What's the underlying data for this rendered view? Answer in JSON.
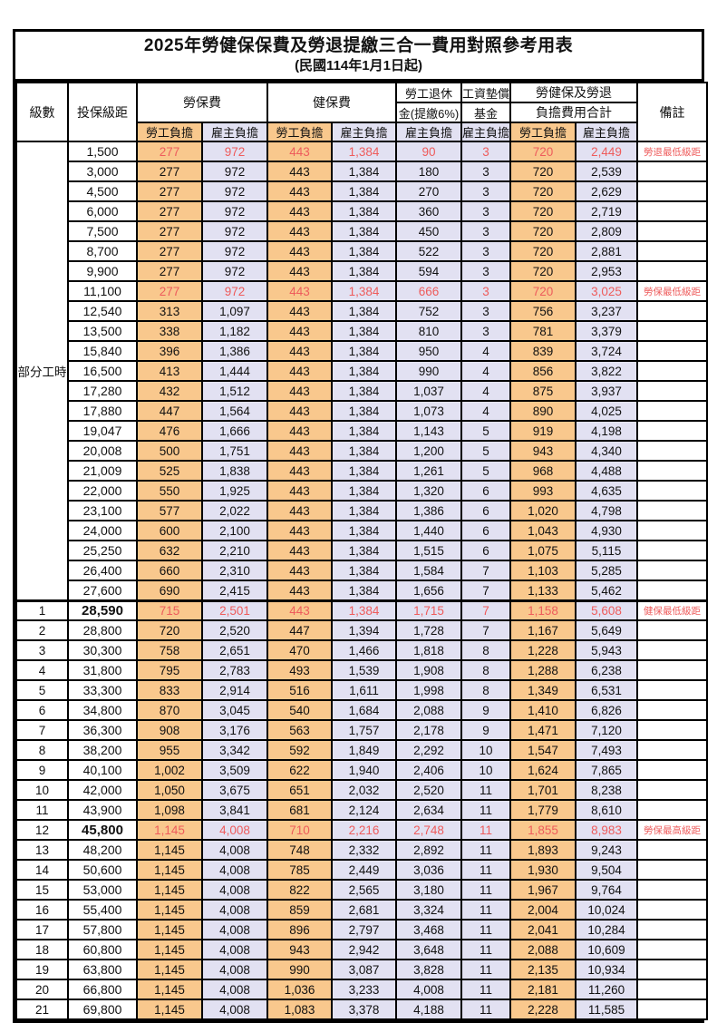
{
  "page": {
    "title": "2025年勞健保保費及勞退提繳三合一費用對照參考用表",
    "subtitle": "(民國114年1月1日起)"
  },
  "header": {
    "level": "級數",
    "bracket": "投保級距",
    "labor_fee": "勞保費",
    "health_fee": "健保費",
    "pension_top": "勞工退休",
    "pension_bottom": "金(提繳6%)",
    "wage_fund_top": "工資墊償",
    "wage_fund_bottom": "基金",
    "total_top": "勞健保及勞退",
    "total_bottom": "負擔費用合計",
    "remark": "備註",
    "employee_share": "勞工負擔",
    "employer_share": "雇主負擔"
  },
  "part_time_label": "部分工時",
  "part_time_rowspan": 23,
  "colors": {
    "employee_fill": "#F9C88D",
    "employer_fill": "#E2E1F2",
    "highlight_text": "#EE5C5C",
    "border": "#000000"
  },
  "rows": [
    {
      "bracket": "1,500",
      "values": [
        "277",
        "972",
        "443",
        "1,384",
        "90",
        "3",
        "720",
        "2,449"
      ],
      "remark": "勞退最低級距",
      "red": true
    },
    {
      "bracket": "3,000",
      "values": [
        "277",
        "972",
        "443",
        "1,384",
        "180",
        "3",
        "720",
        "2,539"
      ]
    },
    {
      "bracket": "4,500",
      "values": [
        "277",
        "972",
        "443",
        "1,384",
        "270",
        "3",
        "720",
        "2,629"
      ]
    },
    {
      "bracket": "6,000",
      "values": [
        "277",
        "972",
        "443",
        "1,384",
        "360",
        "3",
        "720",
        "2,719"
      ]
    },
    {
      "bracket": "7,500",
      "values": [
        "277",
        "972",
        "443",
        "1,384",
        "450",
        "3",
        "720",
        "2,809"
      ]
    },
    {
      "bracket": "8,700",
      "values": [
        "277",
        "972",
        "443",
        "1,384",
        "522",
        "3",
        "720",
        "2,881"
      ]
    },
    {
      "bracket": "9,900",
      "values": [
        "277",
        "972",
        "443",
        "1,384",
        "594",
        "3",
        "720",
        "2,953"
      ]
    },
    {
      "bracket": "11,100",
      "values": [
        "277",
        "972",
        "443",
        "1,384",
        "666",
        "3",
        "720",
        "3,025"
      ],
      "remark": "勞保最低級距",
      "red": true
    },
    {
      "bracket": "12,540",
      "values": [
        "313",
        "1,097",
        "443",
        "1,384",
        "752",
        "3",
        "756",
        "3,237"
      ]
    },
    {
      "bracket": "13,500",
      "values": [
        "338",
        "1,182",
        "443",
        "1,384",
        "810",
        "3",
        "781",
        "3,379"
      ]
    },
    {
      "bracket": "15,840",
      "values": [
        "396",
        "1,386",
        "443",
        "1,384",
        "950",
        "4",
        "839",
        "3,724"
      ]
    },
    {
      "bracket": "16,500",
      "values": [
        "413",
        "1,444",
        "443",
        "1,384",
        "990",
        "4",
        "856",
        "3,822"
      ]
    },
    {
      "bracket": "17,280",
      "values": [
        "432",
        "1,512",
        "443",
        "1,384",
        "1,037",
        "4",
        "875",
        "3,937"
      ]
    },
    {
      "bracket": "17,880",
      "values": [
        "447",
        "1,564",
        "443",
        "1,384",
        "1,073",
        "4",
        "890",
        "4,025"
      ]
    },
    {
      "bracket": "19,047",
      "values": [
        "476",
        "1,666",
        "443",
        "1,384",
        "1,143",
        "5",
        "919",
        "4,198"
      ]
    },
    {
      "bracket": "20,008",
      "values": [
        "500",
        "1,751",
        "443",
        "1,384",
        "1,200",
        "5",
        "943",
        "4,340"
      ]
    },
    {
      "bracket": "21,009",
      "values": [
        "525",
        "1,838",
        "443",
        "1,384",
        "1,261",
        "5",
        "968",
        "4,488"
      ]
    },
    {
      "bracket": "22,000",
      "values": [
        "550",
        "1,925",
        "443",
        "1,384",
        "1,320",
        "6",
        "993",
        "4,635"
      ]
    },
    {
      "bracket": "23,100",
      "values": [
        "577",
        "2,022",
        "443",
        "1,384",
        "1,386",
        "6",
        "1,020",
        "4,798"
      ]
    },
    {
      "bracket": "24,000",
      "values": [
        "600",
        "2,100",
        "443",
        "1,384",
        "1,440",
        "6",
        "1,043",
        "4,930"
      ]
    },
    {
      "bracket": "25,250",
      "values": [
        "632",
        "2,210",
        "443",
        "1,384",
        "1,515",
        "6",
        "1,075",
        "5,115"
      ]
    },
    {
      "bracket": "26,400",
      "values": [
        "660",
        "2,310",
        "443",
        "1,384",
        "1,584",
        "7",
        "1,103",
        "5,285"
      ]
    },
    {
      "bracket": "27,600",
      "values": [
        "690",
        "2,415",
        "443",
        "1,384",
        "1,656",
        "7",
        "1,133",
        "5,462"
      ]
    },
    {
      "level": "1",
      "bracket": "28,590",
      "values": [
        "715",
        "2,501",
        "443",
        "1,384",
        "1,715",
        "7",
        "1,158",
        "5,608"
      ],
      "remark": "健保最低級距",
      "red": true,
      "bold": true,
      "sep": true
    },
    {
      "level": "2",
      "bracket": "28,800",
      "values": [
        "720",
        "2,520",
        "447",
        "1,394",
        "1,728",
        "7",
        "1,167",
        "5,649"
      ]
    },
    {
      "level": "3",
      "bracket": "30,300",
      "values": [
        "758",
        "2,651",
        "470",
        "1,466",
        "1,818",
        "8",
        "1,228",
        "5,943"
      ]
    },
    {
      "level": "4",
      "bracket": "31,800",
      "values": [
        "795",
        "2,783",
        "493",
        "1,539",
        "1,908",
        "8",
        "1,288",
        "6,238"
      ]
    },
    {
      "level": "5",
      "bracket": "33,300",
      "values": [
        "833",
        "2,914",
        "516",
        "1,611",
        "1,998",
        "8",
        "1,349",
        "6,531"
      ]
    },
    {
      "level": "6",
      "bracket": "34,800",
      "values": [
        "870",
        "3,045",
        "540",
        "1,684",
        "2,088",
        "9",
        "1,410",
        "6,826"
      ]
    },
    {
      "level": "7",
      "bracket": "36,300",
      "values": [
        "908",
        "3,176",
        "563",
        "1,757",
        "2,178",
        "9",
        "1,471",
        "7,120"
      ]
    },
    {
      "level": "8",
      "bracket": "38,200",
      "values": [
        "955",
        "3,342",
        "592",
        "1,849",
        "2,292",
        "10",
        "1,547",
        "7,493"
      ]
    },
    {
      "level": "9",
      "bracket": "40,100",
      "values": [
        "1,002",
        "3,509",
        "622",
        "1,940",
        "2,406",
        "10",
        "1,624",
        "7,865"
      ]
    },
    {
      "level": "10",
      "bracket": "42,000",
      "values": [
        "1,050",
        "3,675",
        "651",
        "2,032",
        "2,520",
        "11",
        "1,701",
        "8,238"
      ]
    },
    {
      "level": "11",
      "bracket": "43,900",
      "values": [
        "1,098",
        "3,841",
        "681",
        "2,124",
        "2,634",
        "11",
        "1,779",
        "8,610"
      ]
    },
    {
      "level": "12",
      "bracket": "45,800",
      "values": [
        "1,145",
        "4,008",
        "710",
        "2,216",
        "2,748",
        "11",
        "1,855",
        "8,983"
      ],
      "remark": "勞保最高級距",
      "red": true,
      "bold": true
    },
    {
      "level": "13",
      "bracket": "48,200",
      "values": [
        "1,145",
        "4,008",
        "748",
        "2,332",
        "2,892",
        "11",
        "1,893",
        "9,243"
      ]
    },
    {
      "level": "14",
      "bracket": "50,600",
      "values": [
        "1,145",
        "4,008",
        "785",
        "2,449",
        "3,036",
        "11",
        "1,930",
        "9,504"
      ]
    },
    {
      "level": "15",
      "bracket": "53,000",
      "values": [
        "1,145",
        "4,008",
        "822",
        "2,565",
        "3,180",
        "11",
        "1,967",
        "9,764"
      ]
    },
    {
      "level": "16",
      "bracket": "55,400",
      "values": [
        "1,145",
        "4,008",
        "859",
        "2,681",
        "3,324",
        "11",
        "2,004",
        "10,024"
      ]
    },
    {
      "level": "17",
      "bracket": "57,800",
      "values": [
        "1,145",
        "4,008",
        "896",
        "2,797",
        "3,468",
        "11",
        "2,041",
        "10,284"
      ]
    },
    {
      "level": "18",
      "bracket": "60,800",
      "values": [
        "1,145",
        "4,008",
        "943",
        "2,942",
        "3,648",
        "11",
        "2,088",
        "10,609"
      ]
    },
    {
      "level": "19",
      "bracket": "63,800",
      "values": [
        "1,145",
        "4,008",
        "990",
        "3,087",
        "3,828",
        "11",
        "2,135",
        "10,934"
      ]
    },
    {
      "level": "20",
      "bracket": "66,800",
      "values": [
        "1,145",
        "4,008",
        "1,036",
        "3,233",
        "4,008",
        "11",
        "2,181",
        "11,260"
      ]
    },
    {
      "level": "21",
      "bracket": "69,800",
      "values": [
        "1,145",
        "4,008",
        "1,083",
        "3,378",
        "4,188",
        "11",
        "2,228",
        "11,585"
      ]
    }
  ]
}
